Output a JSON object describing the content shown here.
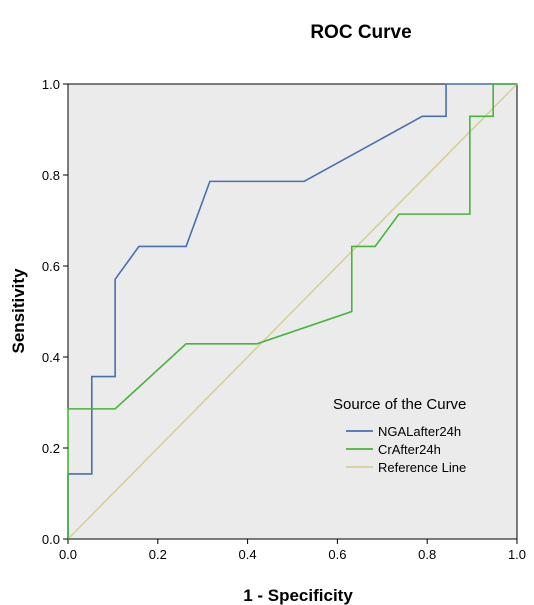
{
  "chart_data": {
    "type": "line",
    "title": "ROC Curve",
    "xlabel": "1 - Specificity",
    "ylabel": "Sensitivity",
    "xlim": [
      0.0,
      1.0
    ],
    "ylim": [
      0.0,
      1.0
    ],
    "xticks": [
      "0.0",
      "0.2",
      "0.4",
      "0.6",
      "0.8",
      "1.0"
    ],
    "yticks": [
      "0.0",
      "0.2",
      "0.4",
      "0.6",
      "0.8",
      "1.0"
    ],
    "grid": false,
    "plot_background": "#ebebeb",
    "legend": {
      "title": "Source of the Curve",
      "placement": "bottom-right"
    },
    "series": [
      {
        "name": "NGALafter24h",
        "color": "#4a6fae",
        "points": [
          [
            0.0,
            0.0
          ],
          [
            0.0,
            0.143
          ],
          [
            0.053,
            0.143
          ],
          [
            0.053,
            0.357
          ],
          [
            0.105,
            0.357
          ],
          [
            0.105,
            0.571
          ],
          [
            0.158,
            0.643
          ],
          [
            0.263,
            0.643
          ],
          [
            0.316,
            0.786
          ],
          [
            0.526,
            0.786
          ],
          [
            0.789,
            0.929
          ],
          [
            0.842,
            0.929
          ],
          [
            0.842,
            1.0
          ],
          [
            1.0,
            1.0
          ]
        ]
      },
      {
        "name": "CrAfter24h",
        "color": "#45b53b",
        "points": [
          [
            0.0,
            0.0
          ],
          [
            0.0,
            0.286
          ],
          [
            0.105,
            0.286
          ],
          [
            0.263,
            0.429
          ],
          [
            0.421,
            0.429
          ],
          [
            0.632,
            0.5
          ],
          [
            0.632,
            0.643
          ],
          [
            0.684,
            0.643
          ],
          [
            0.737,
            0.714
          ],
          [
            0.895,
            0.714
          ],
          [
            0.895,
            0.929
          ],
          [
            0.947,
            0.929
          ],
          [
            0.947,
            1.0
          ],
          [
            1.0,
            1.0
          ]
        ]
      },
      {
        "name": "Reference Line",
        "color": "#d9cf97",
        "points": [
          [
            0.0,
            0.0
          ],
          [
            1.0,
            1.0
          ]
        ]
      }
    ]
  }
}
